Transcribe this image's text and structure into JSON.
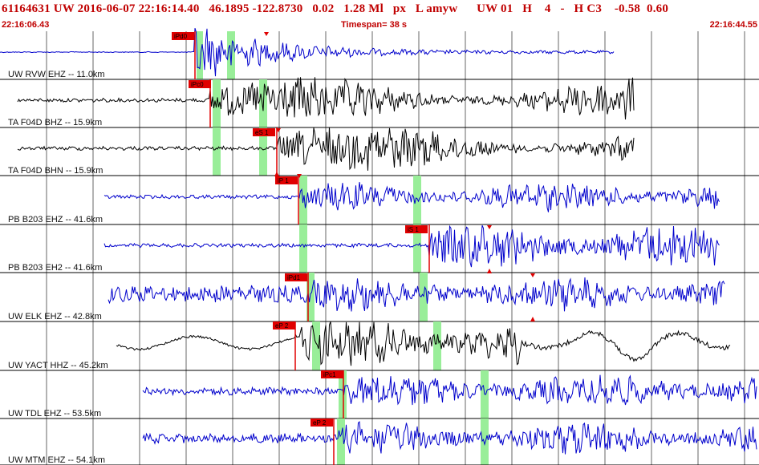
{
  "header": {
    "title": "61164631 UW 2016-06-07 22:16:14.40   46.1895 -122.8730   0.02   1.28 Ml   px   L amyw      UW 01   H    4   -   H C3    -0.58  0.60",
    "start_time": "22:16:06.43",
    "timespan": "Timespan=  38 s",
    "end_time": "22:16:44.55"
  },
  "colors": {
    "header_text": "#c00000",
    "trace_blue": "#0000cc",
    "trace_black": "#000000",
    "pick": "#e00000",
    "window": "#99ee99",
    "grid": "#000000"
  },
  "traces": [
    {
      "label": "UW RVW EHZ -- 11.0km",
      "color": "blue",
      "picks": [
        {
          "t": "iPd0"
        }
      ]
    },
    {
      "label": "TA F04D BHZ -- 15.9km",
      "color": "black",
      "picks": [
        {
          "t": "iPc0"
        }
      ]
    },
    {
      "label": "TA F04D BHN -- 15.9km",
      "color": "black",
      "picks": [
        {
          "t": "eS 1"
        }
      ]
    },
    {
      "label": "PB B203 EHZ -- 41.6km",
      "color": "blue",
      "picks": [
        {
          "t": "iP 1"
        }
      ]
    },
    {
      "label": "PB B203 EH2 -- 41.6km",
      "color": "blue",
      "picks": [
        {
          "t": "iS 1"
        }
      ]
    },
    {
      "label": "UW ELK EHZ -- 42.8km",
      "color": "blue",
      "picks": [
        {
          "t": "iPd1"
        }
      ]
    },
    {
      "label": "UW YACT HHZ -- 45.2km",
      "color": "black",
      "picks": [
        {
          "t": "eP 2"
        }
      ]
    },
    {
      "label": "UW TDL EHZ -- 53.5km",
      "color": "blue",
      "picks": [
        {
          "t": "iPc1"
        }
      ]
    },
    {
      "label": "UW MTM EHZ -- 54.1km",
      "color": "blue",
      "picks": [
        {
          "t": "eP 2"
        }
      ]
    }
  ]
}
